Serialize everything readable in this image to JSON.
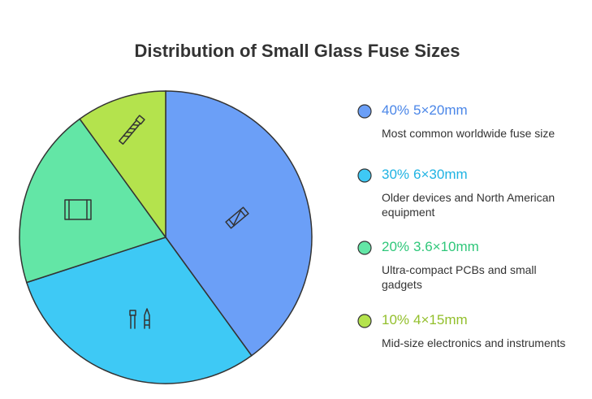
{
  "chart_data": {
    "type": "pie",
    "title": "Distribution of Small Glass Fuse Sizes",
    "categories": [
      "5×20mm",
      "6×30mm",
      "3.6×10mm",
      "4×15mm"
    ],
    "values": [
      40,
      30,
      20,
      10
    ],
    "value_labels": [
      "40%",
      "30%",
      "20%",
      "10%"
    ],
    "colors": [
      "#6b9ff7",
      "#3ec9f5",
      "#63e6a6",
      "#b4e34d"
    ],
    "label_colors": [
      "#4a86e8",
      "#1fb3e3",
      "#2fc77a",
      "#93bf2c"
    ],
    "descriptions": [
      "Most common worldwide fuse size",
      "Older devices and North American equipment",
      "Ultra-compact PCBs and small gadgets",
      "Mid-size electronics and instruments"
    ]
  }
}
